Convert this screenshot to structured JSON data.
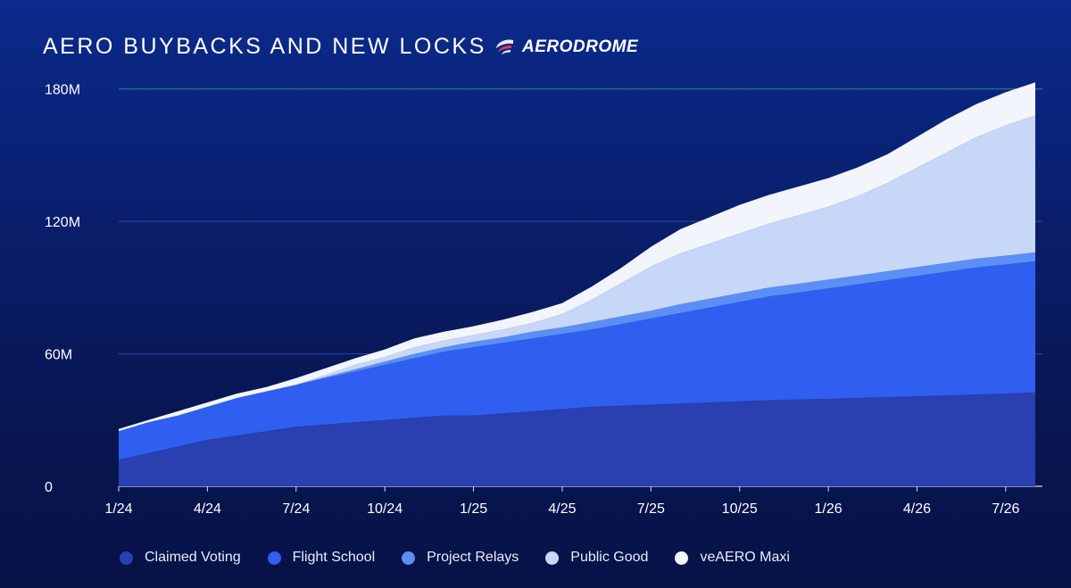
{
  "header": {
    "title": "AERO BUYBACKS AND NEW LOCKS",
    "brand_name": "AERODROME",
    "brand_icon": "aerodrome-logo-icon"
  },
  "chart_data": {
    "type": "area",
    "stacked": true,
    "title": "AERO BUYBACKS AND NEW LOCKS",
    "xlabel": "",
    "ylabel": "",
    "x_ticks": [
      "1/24",
      "4/24",
      "7/24",
      "10/24",
      "1/25",
      "4/25",
      "7/25",
      "10/25",
      "1/26",
      "4/26",
      "7/26"
    ],
    "y_ticks": [
      "0",
      "60M",
      "120M",
      "180M"
    ],
    "y_tick_values": [
      0,
      60,
      120,
      180
    ],
    "ylim": [
      0,
      192
    ],
    "xlim": [
      0,
      31
    ],
    "x_tick_positions": [
      0,
      3,
      6,
      9,
      12,
      15,
      18,
      21,
      24,
      27,
      30
    ],
    "grid": "horizontal",
    "legend_position": "bottom",
    "x": [
      0,
      1,
      2,
      3,
      4,
      5,
      6,
      7,
      8,
      9,
      10,
      11,
      12,
      13,
      14,
      15,
      16,
      17,
      18,
      19,
      20,
      21,
      22,
      23,
      24,
      25,
      26,
      27,
      28,
      29,
      30,
      31
    ],
    "series": [
      {
        "name": "Claimed Voting",
        "color": "#2a3fb0",
        "values": [
          12,
          15,
          18,
          21,
          23,
          25,
          27,
          28,
          29,
          30,
          31,
          32,
          32,
          33,
          34,
          35,
          36,
          36.5,
          37,
          37.5,
          38,
          38.5,
          39,
          39.3,
          39.6,
          40,
          40.4,
          40.8,
          41.2,
          41.6,
          42,
          42.5
        ]
      },
      {
        "name": "Flight School",
        "color": "#2f5ef0",
        "values": [
          13,
          14,
          14,
          15,
          17,
          18,
          19,
          21,
          23,
          25,
          27,
          29,
          31,
          32,
          33,
          34,
          35,
          37,
          39,
          41,
          43,
          45,
          47,
          48.5,
          50,
          51.5,
          53,
          54.5,
          56,
          57.5,
          58.5,
          59.5
        ]
      },
      {
        "name": "Project Relays",
        "color": "#5b8ff5",
        "values": [
          0,
          0,
          0,
          0,
          0,
          0,
          0,
          0.5,
          1,
          1.5,
          2,
          2,
          2.5,
          2.5,
          3,
          3,
          3.5,
          3.5,
          3.5,
          4,
          4,
          4,
          4,
          4,
          4,
          4,
          4,
          4,
          4,
          4,
          4,
          4
        ]
      },
      {
        "name": "Public Good",
        "color": "#c7d7f7",
        "values": [
          0,
          0,
          0,
          0,
          0,
          0,
          0,
          1,
          2,
          2,
          3,
          3,
          3,
          3.5,
          4,
          6,
          10,
          15,
          20,
          23,
          25,
          27,
          29,
          31,
          33,
          36,
          40,
          45,
          50,
          55,
          59,
          62
        ]
      },
      {
        "name": "veAERO Maxi",
        "color": "#f2f5fc",
        "values": [
          1,
          1,
          2,
          2,
          2,
          2,
          3,
          3,
          3,
          3.5,
          4,
          4,
          4,
          4.5,
          5,
          5,
          6,
          7,
          9,
          11,
          12,
          13,
          13,
          13,
          13,
          13,
          13,
          14,
          15,
          15,
          15,
          15
        ]
      }
    ]
  }
}
